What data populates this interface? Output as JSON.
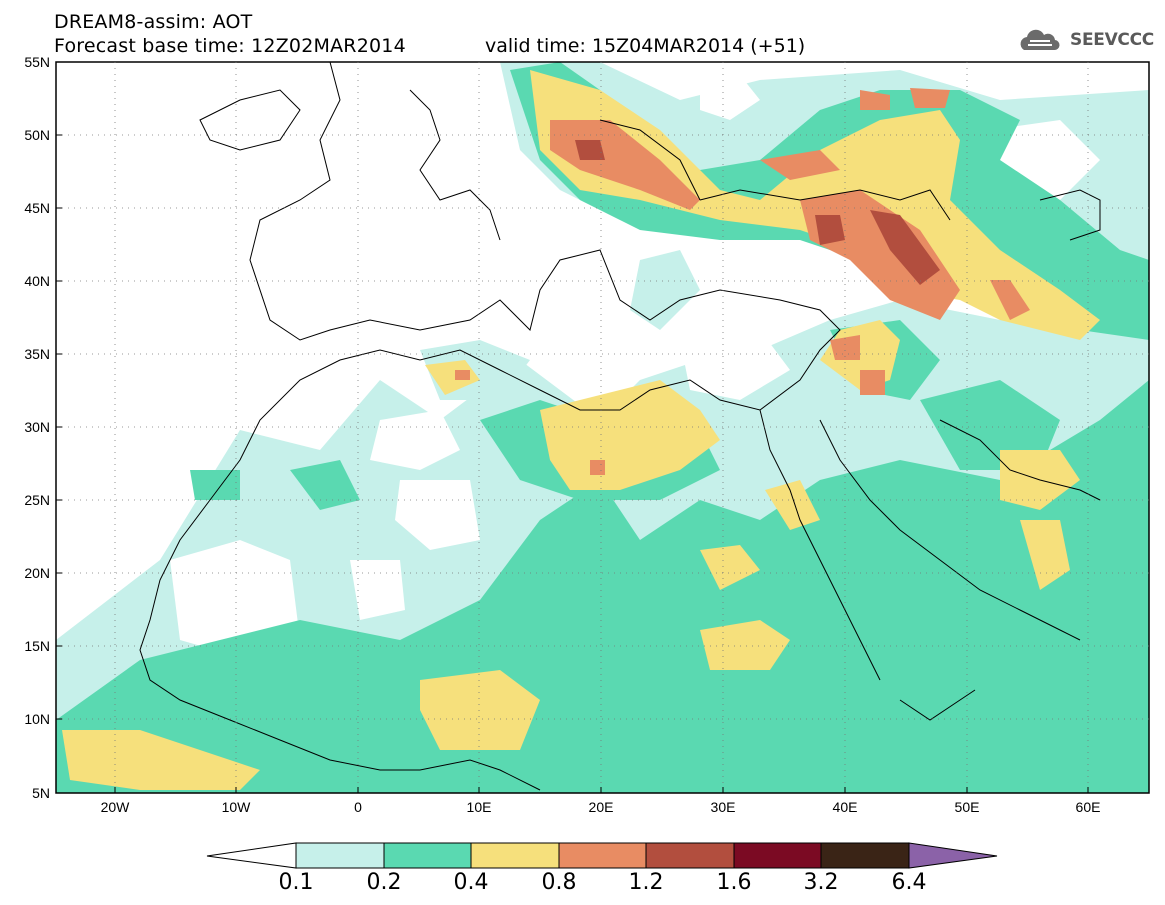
{
  "header": {
    "title": "DREAM8-assim: AOT",
    "base_time": "Forecast base time: 12Z02MAR2014",
    "valid_time": "valid time: 15Z04MAR2014 (+51)",
    "logo_text": "SEEVCCC"
  },
  "axes": {
    "lat_labels": [
      "55N",
      "50N",
      "45N",
      "40N",
      "35N",
      "30N",
      "25N",
      "20N",
      "15N",
      "10N",
      "5N"
    ],
    "lon_labels": [
      "20W",
      "10W",
      "0",
      "10E",
      "20E",
      "30E",
      "40E",
      "50E",
      "60E"
    ]
  },
  "colorbar": {
    "labels": [
      "0.1",
      "0.2",
      "0.4",
      "0.8",
      "1.2",
      "1.6",
      "3.2",
      "6.4"
    ],
    "colors": [
      "#ffffff",
      "#c6f0ea",
      "#5ad9b1",
      "#f6e07c",
      "#e88c63",
      "#b24e3e",
      "#7b0a23",
      "#3a2416",
      "#8b62a8"
    ]
  }
}
